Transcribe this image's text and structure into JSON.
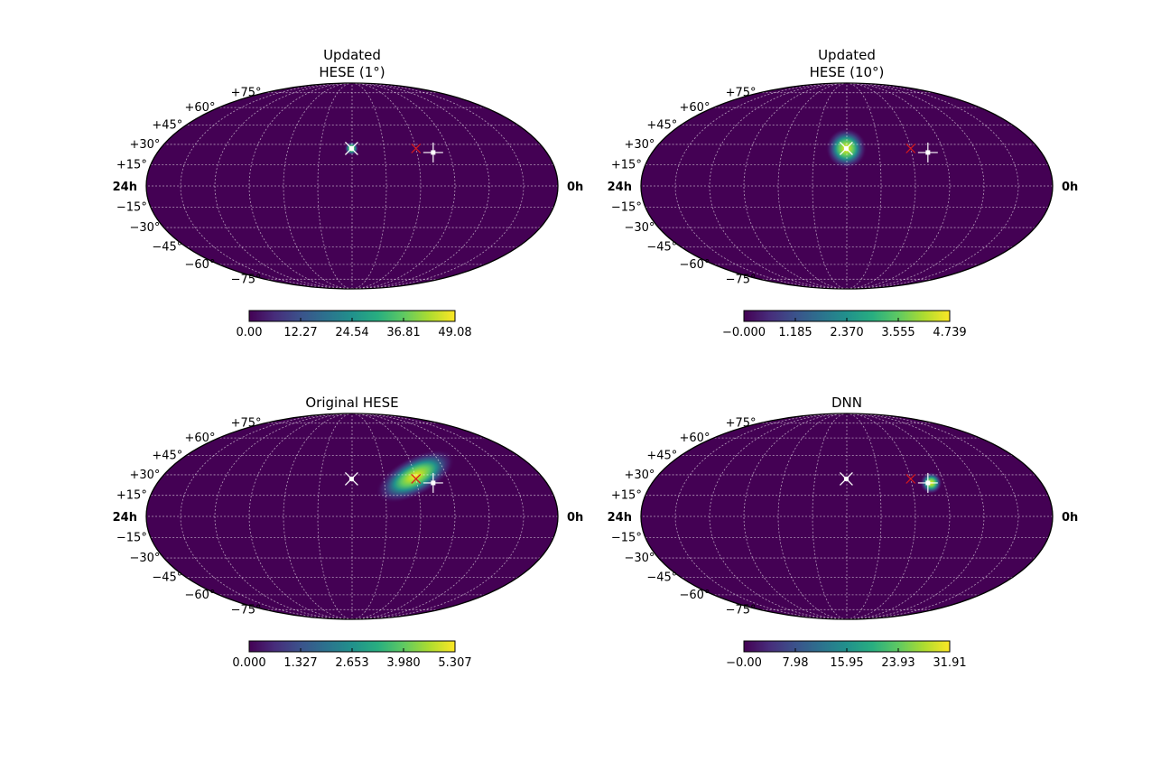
{
  "chart_data": [
    {
      "type": "heatmap",
      "projection": "mollweide",
      "title_lines": [
        "Updated",
        "HESE (1°)"
      ],
      "ra_labels": [
        "24h",
        "0h"
      ],
      "dec_labels": [
        "+75°",
        "+60°",
        "+45°",
        "+30°",
        "+15°",
        "−15°",
        "−30°",
        "−45°",
        "−60°",
        "−75°"
      ],
      "hotspot": {
        "lon": 0.5,
        "lat": 27,
        "sigma_deg": 2.2
      },
      "colorbar": {
        "min": 0.0,
        "max": 49.08,
        "ticks": [
          "0.00",
          "12.27",
          "24.54",
          "36.81",
          "49.08"
        ]
      },
      "markers": [
        {
          "kind": "white-plus",
          "lon": -75,
          "lat": 24
        },
        {
          "kind": "red-x",
          "lon": -60,
          "lat": 27
        },
        {
          "kind": "white-x",
          "lon": 0.5,
          "lat": 27
        }
      ]
    },
    {
      "type": "heatmap",
      "projection": "mollweide",
      "title_lines": [
        "Updated",
        "HESE (10°)"
      ],
      "ra_labels": [
        "24h",
        "0h"
      ],
      "dec_labels": [
        "+75°",
        "+60°",
        "+45°",
        "+30°",
        "+15°",
        "−15°",
        "−30°",
        "−45°",
        "−60°",
        "−75°"
      ],
      "hotspot": {
        "lon": 0.5,
        "lat": 27,
        "sigma_deg": 6.5
      },
      "colorbar": {
        "min": 0.0,
        "max": 4.739,
        "ticks": [
          "−0.000",
          "1.185",
          "2.370",
          "3.555",
          "4.739"
        ]
      },
      "markers": [
        {
          "kind": "white-plus",
          "lon": -75,
          "lat": 24
        },
        {
          "kind": "red-x",
          "lon": -60,
          "lat": 27
        },
        {
          "kind": "white-x",
          "lon": 0.5,
          "lat": 27
        }
      ]
    },
    {
      "type": "heatmap",
      "projection": "mollweide",
      "title_lines": [
        "Original HESE"
      ],
      "ra_labels": [
        "24h",
        "0h"
      ],
      "dec_labels": [
        "+75°",
        "+60°",
        "+45°",
        "+30°",
        "+15°",
        "−15°",
        "−30°",
        "−45°",
        "−60°",
        "−75°"
      ],
      "hotspot": {
        "lon": -60,
        "lat": 29,
        "sigma_deg": 9,
        "elongated": true
      },
      "colorbar": {
        "min": 0.0,
        "max": 5.307,
        "ticks": [
          "0.000",
          "1.327",
          "2.653",
          "3.980",
          "5.307"
        ]
      },
      "markers": [
        {
          "kind": "white-plus",
          "lon": -75,
          "lat": 24
        },
        {
          "kind": "red-x",
          "lon": -60,
          "lat": 27
        },
        {
          "kind": "white-x",
          "lon": 0.5,
          "lat": 27
        }
      ]
    },
    {
      "type": "heatmap",
      "projection": "mollweide",
      "title_lines": [
        "DNN"
      ],
      "ra_labels": [
        "24h",
        "0h"
      ],
      "dec_labels": [
        "+75°",
        "+60°",
        "+45°",
        "+30°",
        "+15°",
        "−15°",
        "−30°",
        "−45°",
        "−60°",
        "−75°"
      ],
      "hotspot": {
        "lon": -78,
        "lat": 24,
        "sigma_deg": 3.5
      },
      "colorbar": {
        "min": 0.0,
        "max": 31.91,
        "ticks": [
          "−0.00",
          "7.98",
          "15.95",
          "23.93",
          "31.91"
        ]
      },
      "markers": [
        {
          "kind": "white-plus",
          "lon": -75,
          "lat": 24
        },
        {
          "kind": "red-x",
          "lon": -60,
          "lat": 27
        },
        {
          "kind": "white-x",
          "lon": 0.5,
          "lat": 27
        }
      ]
    }
  ]
}
